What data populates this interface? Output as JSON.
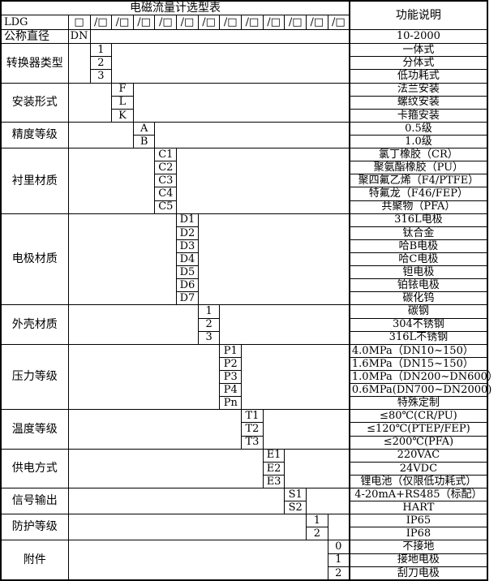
{
  "table": {
    "title": "电磁流量计选型表",
    "right_header": "功能说明",
    "model_row": {
      "prefix": "LDG",
      "first_box": "□",
      "code_box": "/□",
      "code_box_count": 12
    },
    "groups": [
      {
        "label": "公称直径",
        "label_align": "left",
        "col": 0,
        "options": [
          {
            "code": "DN",
            "desc": "10-2000"
          }
        ]
      },
      {
        "label": "转换器类型",
        "col": 1,
        "options": [
          {
            "code": "1",
            "desc": "一体式"
          },
          {
            "code": "2",
            "desc": "分体式"
          },
          {
            "code": "3",
            "desc": "低功耗式"
          }
        ]
      },
      {
        "label": "安装形式",
        "col": 2,
        "options": [
          {
            "code": "F",
            "desc": "法兰安装"
          },
          {
            "code": "L",
            "desc": "螺纹安装"
          },
          {
            "code": "K",
            "desc": "卡箍安装"
          }
        ]
      },
      {
        "label": "精度等级",
        "col": 3,
        "options": [
          {
            "code": "A",
            "desc": "0.5级"
          },
          {
            "code": "B",
            "desc": "1.0级"
          }
        ]
      },
      {
        "label": "衬里材质",
        "col": 4,
        "options": [
          {
            "code": "C1",
            "desc": "氯丁橡胶（CR）"
          },
          {
            "code": "C2",
            "desc": "聚氨酯橡胶（PU）"
          },
          {
            "code": "C3",
            "desc": "聚四氟乙烯（F4/PTFE）"
          },
          {
            "code": "C4",
            "desc": "特氟龙（F46/FEP）"
          },
          {
            "code": "C5",
            "desc": "共聚物（PFA）"
          }
        ]
      },
      {
        "label": "电极材质",
        "col": 5,
        "options": [
          {
            "code": "D1",
            "desc": "316L电极"
          },
          {
            "code": "D2",
            "desc": "钛合金"
          },
          {
            "code": "D3",
            "desc": "哈B电极"
          },
          {
            "code": "D4",
            "desc": "哈C电极"
          },
          {
            "code": "D5",
            "desc": "钽电极"
          },
          {
            "code": "D6",
            "desc": "铂铱电极"
          },
          {
            "code": "D7",
            "desc": "碳化钨"
          }
        ]
      },
      {
        "label": "外壳材质",
        "col": 6,
        "options": [
          {
            "code": "1",
            "desc": "碳钢"
          },
          {
            "code": "2",
            "desc": "304不锈钢"
          },
          {
            "code": "3",
            "desc": "316L不锈钢"
          }
        ]
      },
      {
        "label": "压力等级",
        "col": 7,
        "options": [
          {
            "code": "P1",
            "desc": "4.0MPa（DN10~150）",
            "align": "left"
          },
          {
            "code": "P2",
            "desc": "1.6MPa（DN15~150）",
            "align": "left"
          },
          {
            "code": "P3",
            "desc": "1.0MPa（DN200~DN600）",
            "align": "left"
          },
          {
            "code": "P4",
            "desc": "0.6MPa(DN700~DN2000)",
            "align": "left"
          },
          {
            "code": "Pn",
            "desc": "特殊定制"
          }
        ]
      },
      {
        "label": "温度等级",
        "col": 8,
        "options": [
          {
            "code": "T1",
            "desc": "≤80℃(CR/PU)"
          },
          {
            "code": "T2",
            "desc": "≤120℃(PTEP/FEP)"
          },
          {
            "code": "T3",
            "desc": "≤200℃(PFA)"
          }
        ]
      },
      {
        "label": "供电方式",
        "col": 9,
        "options": [
          {
            "code": "E1",
            "desc": "220VAC"
          },
          {
            "code": "E2",
            "desc": "24VDC"
          },
          {
            "code": "E3",
            "desc": "锂电池（仅限低功耗式）"
          }
        ]
      },
      {
        "label": "信号输出",
        "col": 10,
        "options": [
          {
            "code": "S1",
            "desc": "4-20mA+RS485（标配）"
          },
          {
            "code": "S2",
            "desc": "HART"
          }
        ]
      },
      {
        "label": "防护等级",
        "col": 11,
        "options": [
          {
            "code": "1",
            "desc": "IP65"
          },
          {
            "code": "2",
            "desc": "IP68"
          }
        ]
      },
      {
        "label": "附件",
        "col": 12,
        "options": [
          {
            "code": "0",
            "desc": "不接地"
          },
          {
            "code": "1",
            "desc": "接地电极"
          },
          {
            "code": "2",
            "desc": "刮刀电极"
          }
        ]
      }
    ]
  },
  "colors": {
    "border": "#000000",
    "background": "#ffffff",
    "text": "#000000"
  }
}
